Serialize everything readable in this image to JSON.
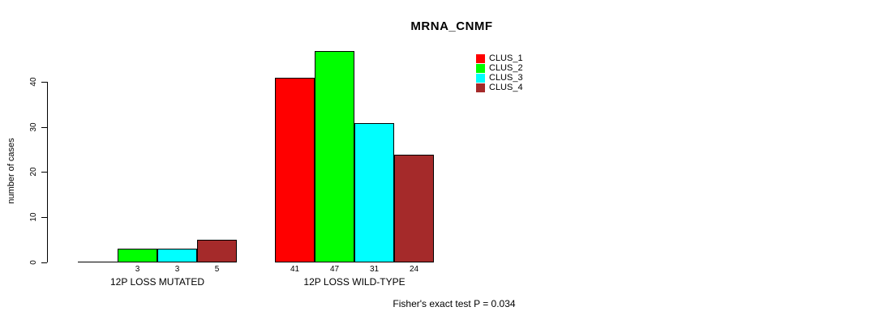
{
  "title": "MRNA_CNMF",
  "footnote": "Fisher's exact test P = 0.034",
  "y_axis": {
    "label": "number of cases",
    "tick_labels": [
      "0",
      "10",
      "20",
      "30",
      "40"
    ]
  },
  "legend": [
    {
      "label": "CLUS_1",
      "color": "#FF0000"
    },
    {
      "label": "CLUS_2",
      "color": "#00FF00"
    },
    {
      "label": "CLUS_3",
      "color": "#00FFFF"
    },
    {
      "label": "CLUS_4",
      "color": "#A52A2A"
    }
  ],
  "chart_data": {
    "type": "bar",
    "title": "MRNA_CNMF",
    "xlabel": "",
    "ylabel": "number of cases",
    "ylim": [
      0,
      47.5
    ],
    "yticks": [
      0,
      10,
      20,
      30,
      40
    ],
    "grid": false,
    "legend_position": "top-right",
    "categories": [
      "12P LOSS MUTATED",
      "12P LOSS WILD-TYPE"
    ],
    "series": [
      {
        "name": "CLUS_1",
        "color": "#FF0000",
        "values": [
          0,
          41
        ]
      },
      {
        "name": "CLUS_2",
        "color": "#00FF00",
        "values": [
          3,
          47
        ]
      },
      {
        "name": "CLUS_3",
        "color": "#00FFFF",
        "values": [
          3,
          31
        ]
      },
      {
        "name": "CLUS_4",
        "color": "#A52A2A",
        "values": [
          5,
          24
        ]
      }
    ],
    "bar_value_labels": [
      [
        "",
        "3",
        "3",
        "5"
      ],
      [
        "41",
        "47",
        "31",
        "24"
      ]
    ],
    "annotation": "Fisher's exact test P = 0.034"
  }
}
